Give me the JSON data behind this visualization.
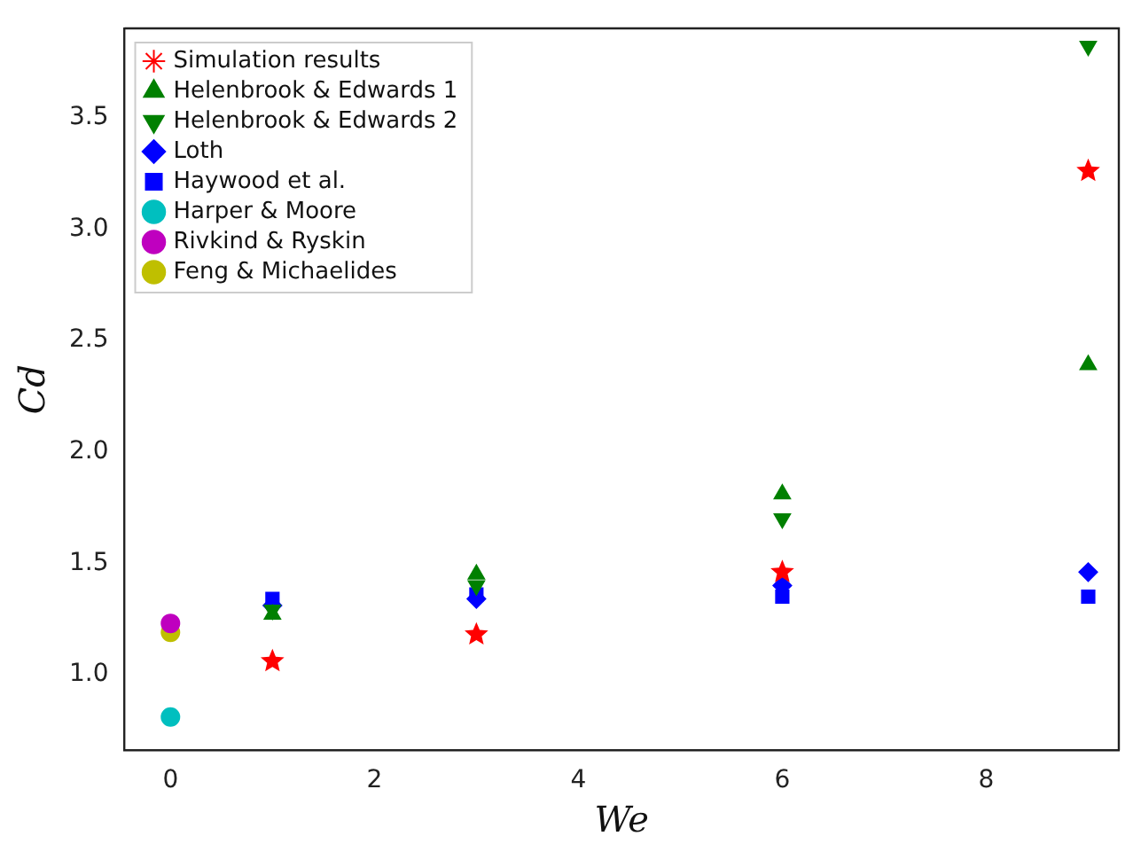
{
  "chart_data": {
    "type": "scatter",
    "xlabel": "We",
    "ylabel": "Cd",
    "xlim": [
      -0.45,
      9.3
    ],
    "xticks": [
      0,
      2,
      4,
      6,
      8
    ],
    "ylim": [
      0.66,
      3.9
    ],
    "yticks": [
      {
        "value": 1,
        "label": "1.0"
      },
      1.5,
      {
        "value": 2,
        "label": "2.0"
      },
      2.5,
      {
        "value": 3,
        "label": "3.0"
      },
      3.5
    ],
    "grid": false,
    "legend": "top left",
    "series": [
      {
        "name": "Simulation results",
        "color": "#ff0000",
        "marker": "star",
        "x": [
          1,
          3,
          6,
          9
        ],
        "values": [
          1.06,
          1.18,
          1.46,
          3.26
        ]
      },
      {
        "name": "Helenbrook & Edwards 1",
        "color": "#008000",
        "marker": "triangle",
        "x": [
          1,
          3,
          6,
          9
        ],
        "values": [
          1.27,
          1.45,
          1.81,
          2.39
        ]
      },
      {
        "name": "Helenbrook & Edwards 2",
        "color": "#008000",
        "marker": "triangle_down",
        "x": [
          1,
          3,
          6,
          9
        ],
        "values": [
          1.29,
          1.4,
          1.7,
          3.82
        ]
      },
      {
        "name": "Loth",
        "color": "#0000ff",
        "marker": "diamond",
        "x": [
          1,
          3,
          6,
          9
        ],
        "values": [
          1.31,
          1.34,
          1.4,
          1.46
        ]
      },
      {
        "name": "Haywood et al.",
        "color": "#0000ff",
        "marker": "square",
        "x": [
          1,
          3,
          6,
          9
        ],
        "values": [
          1.34,
          1.36,
          1.35,
          1.35
        ]
      },
      {
        "name": "Harper & Moore",
        "color": "#00bfbf",
        "marker": "circle",
        "x": [
          0
        ],
        "values": [
          0.81
        ]
      },
      {
        "name": "Rivkind & Ryskin",
        "color": "#bf00bf",
        "marker": "circle",
        "x": [
          0
        ],
        "values": [
          1.23
        ]
      },
      {
        "name": "Feng & Michaelides",
        "color": "#bfbf00",
        "marker": "circle",
        "x": [
          0
        ],
        "values": [
          1.19
        ]
      }
    ]
  }
}
